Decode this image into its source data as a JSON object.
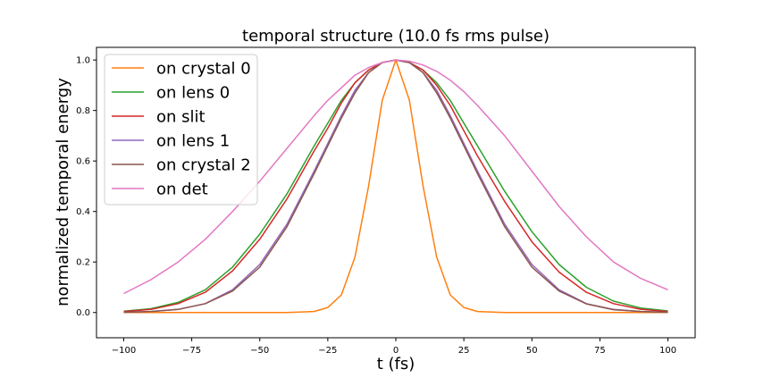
{
  "chart_data": {
    "type": "line",
    "title": "temporal structure (10.0 fs rms pulse)",
    "xlabel": "t (fs)",
    "ylabel": "normalized temporal energy",
    "xlim": [
      -110,
      110
    ],
    "ylim": [
      -0.1,
      1.05
    ],
    "xticks": [
      -100,
      -75,
      -50,
      -25,
      0,
      25,
      50,
      75,
      100
    ],
    "xtick_labels": [
      "−100",
      "−75",
      "−50",
      "−25",
      "0",
      "25",
      "50",
      "75",
      "100"
    ],
    "yticks": [
      0.0,
      0.2,
      0.4,
      0.6,
      0.8,
      1.0
    ],
    "ytick_labels": [
      "0.0",
      "0.2",
      "0.4",
      "0.6",
      "0.8",
      "1.0"
    ],
    "grid": false,
    "legend_position": "top-left",
    "x": [
      -100,
      -90,
      -80,
      -70,
      -60,
      -50,
      -40,
      -30,
      -25,
      -20,
      -15,
      -10,
      -5,
      0,
      5,
      10,
      15,
      20,
      25,
      30,
      40,
      50,
      60,
      70,
      80,
      90,
      100
    ],
    "series": [
      {
        "name": "on crystal 0",
        "color": "#ff7f0e",
        "values": [
          0.0,
          0.0,
          0.0,
          0.0,
          0.0,
          0.0,
          0.0,
          0.004,
          0.02,
          0.07,
          0.22,
          0.5,
          0.84,
          1.0,
          0.84,
          0.5,
          0.22,
          0.07,
          0.02,
          0.004,
          0.0,
          0.0,
          0.0,
          0.0,
          0.0,
          0.0,
          0.0
        ]
      },
      {
        "name": "on lens 0",
        "color": "#2ca02c",
        "values": [
          0.005,
          0.015,
          0.04,
          0.09,
          0.18,
          0.31,
          0.47,
          0.66,
          0.75,
          0.84,
          0.91,
          0.96,
          0.99,
          1.0,
          0.99,
          0.96,
          0.91,
          0.84,
          0.75,
          0.66,
          0.48,
          0.32,
          0.19,
          0.1,
          0.045,
          0.018,
          0.006
        ]
      },
      {
        "name": "on slit",
        "color": "#d62728",
        "values": [
          0.004,
          0.012,
          0.035,
          0.08,
          0.165,
          0.29,
          0.45,
          0.64,
          0.73,
          0.83,
          0.91,
          0.96,
          0.99,
          1.0,
          0.99,
          0.96,
          0.9,
          0.82,
          0.72,
          0.62,
          0.44,
          0.28,
          0.16,
          0.08,
          0.035,
          0.013,
          0.004
        ]
      },
      {
        "name": "on lens 1",
        "color": "#9467bd",
        "values": [
          0.001,
          0.004,
          0.012,
          0.035,
          0.09,
          0.19,
          0.35,
          0.56,
          0.67,
          0.78,
          0.88,
          0.95,
          0.99,
          1.0,
          0.99,
          0.95,
          0.88,
          0.78,
          0.67,
          0.56,
          0.35,
          0.19,
          0.09,
          0.035,
          0.012,
          0.004,
          0.001
        ]
      },
      {
        "name": "on crystal 2",
        "color": "#8c564b",
        "values": [
          0.001,
          0.004,
          0.012,
          0.035,
          0.085,
          0.18,
          0.34,
          0.55,
          0.66,
          0.77,
          0.87,
          0.95,
          0.99,
          1.0,
          0.99,
          0.95,
          0.87,
          0.77,
          0.66,
          0.55,
          0.34,
          0.18,
          0.085,
          0.034,
          0.011,
          0.004,
          0.001
        ]
      },
      {
        "name": "on det",
        "color": "#e377c2",
        "values": [
          0.075,
          0.13,
          0.2,
          0.29,
          0.4,
          0.52,
          0.65,
          0.78,
          0.84,
          0.89,
          0.94,
          0.97,
          0.99,
          1.0,
          0.995,
          0.98,
          0.955,
          0.92,
          0.875,
          0.82,
          0.7,
          0.56,
          0.42,
          0.3,
          0.2,
          0.135,
          0.09
        ]
      }
    ]
  }
}
